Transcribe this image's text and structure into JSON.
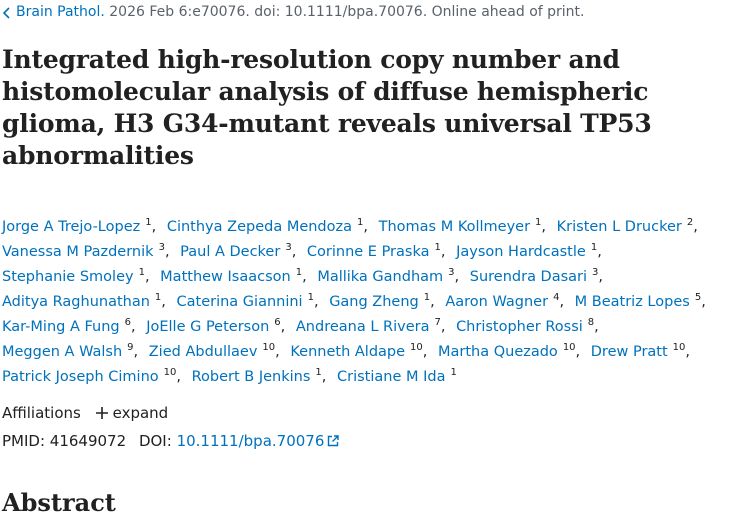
{
  "citation": {
    "journal": "Brain Pathol.",
    "details": "2026 Feb 6:e70076. doi: 10.1111/bpa.70076. Online ahead of print."
  },
  "title": "Integrated high-resolution copy number and histomolecular analysis of diffuse hemispheric glioma, H3 G34-mutant reveals universal TP53 abnormalities",
  "authors": {
    "lines": [
      [
        {
          "name": "Jorge A Trejo-Lopez",
          "aff": "1"
        },
        {
          "name": "Cinthya Zepeda Mendoza",
          "aff": "1"
        },
        {
          "name": "Thomas M Kollmeyer",
          "aff": "1"
        },
        {
          "name": "Kristen L Drucker",
          "aff": "2"
        }
      ],
      [
        {
          "name": "Vanessa M Pazdernik",
          "aff": "3"
        },
        {
          "name": "Paul A Decker",
          "aff": "3"
        },
        {
          "name": "Corinne E Praska",
          "aff": "1"
        },
        {
          "name": "Jayson Hardcastle",
          "aff": "1"
        }
      ],
      [
        {
          "name": "Stephanie Smoley",
          "aff": "1"
        },
        {
          "name": "Matthew Isaacson",
          "aff": "1"
        },
        {
          "name": "Mallika Gandham",
          "aff": "3"
        },
        {
          "name": "Surendra Dasari",
          "aff": "3"
        }
      ],
      [
        {
          "name": "Aditya Raghunathan",
          "aff": "1"
        },
        {
          "name": "Caterina Giannini",
          "aff": "1"
        },
        {
          "name": "Gang Zheng",
          "aff": "1"
        },
        {
          "name": "Aaron Wagner",
          "aff": "4"
        },
        {
          "name": "M Beatriz Lopes",
          "aff": "5"
        }
      ],
      [
        {
          "name": "Kar-Ming A Fung",
          "aff": "6"
        },
        {
          "name": "JoElle G Peterson",
          "aff": "6"
        },
        {
          "name": "Andreana L Rivera",
          "aff": "7"
        },
        {
          "name": "Christopher Rossi",
          "aff": "8"
        }
      ],
      [
        {
          "name": "Meggen A Walsh",
          "aff": "9"
        },
        {
          "name": "Zied Abdullaev",
          "aff": "10"
        },
        {
          "name": "Kenneth Aldape",
          "aff": "10"
        },
        {
          "name": "Martha Quezado",
          "aff": "10"
        },
        {
          "name": "Drew Pratt",
          "aff": "10"
        }
      ],
      [
        {
          "name": "Patrick Joseph Cimino",
          "aff": "10"
        },
        {
          "name": "Robert B Jenkins",
          "aff": "1"
        },
        {
          "name": "Cristiane M Ida",
          "aff": "1"
        }
      ]
    ]
  },
  "affiliations": {
    "label": "Affiliations",
    "expand": "expand"
  },
  "identifiers": {
    "pmid_label": "PMID:",
    "pmid": "41649072",
    "doi_label": "DOI:",
    "doi": "10.1111/bpa.70076"
  },
  "abstract_heading": "Abstract"
}
